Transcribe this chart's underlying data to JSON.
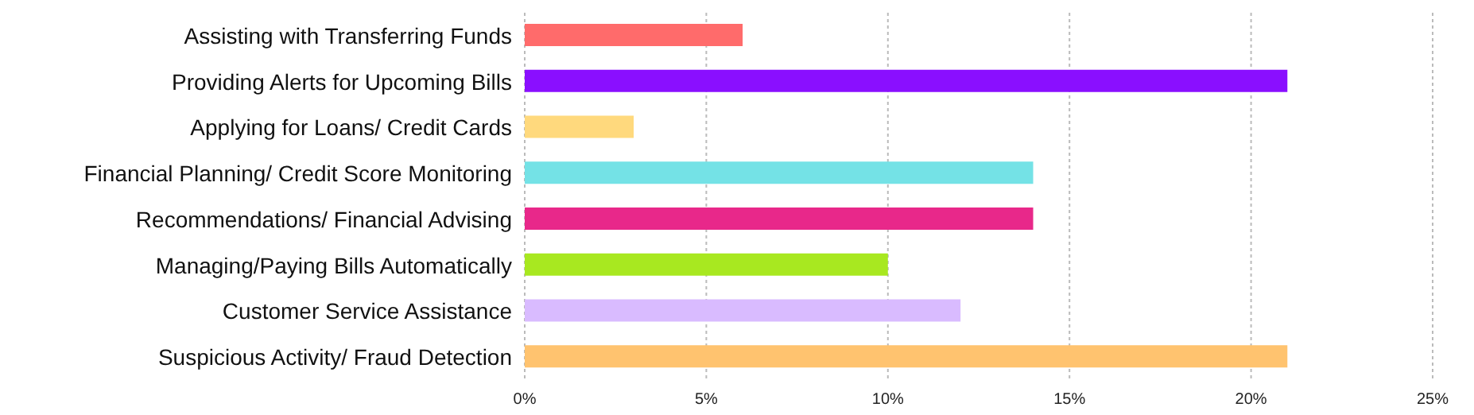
{
  "chart_data": {
    "type": "bar",
    "orientation": "horizontal",
    "categories": [
      "Assisting with Transferring Funds",
      "Providing Alerts for Upcoming Bills",
      "Applying for Loans/ Credit Cards",
      "Financial Planning/ Credit Score Monitoring",
      "Recommendations/ Financial Advising",
      "Managing/Paying Bills Automatically",
      "Customer Service Assistance",
      "Suspicious Activity/ Fraud Detection"
    ],
    "values": [
      6,
      21,
      3,
      14,
      14,
      10,
      12,
      21
    ],
    "colors": [
      "#ff6b6b",
      "#8a0fff",
      "#ffd97d",
      "#74e2e6",
      "#e8288a",
      "#a8e820",
      "#d9bbff",
      "#ffc36f"
    ],
    "xlim": [
      0,
      25
    ],
    "xticks": [
      {
        "value": 0,
        "label": "0%"
      },
      {
        "value": 5,
        "label": "5%"
      },
      {
        "value": 10,
        "label": "10%"
      },
      {
        "value": 15,
        "label": "15%"
      },
      {
        "value": 20,
        "label": "20%"
      },
      {
        "value": 25,
        "label": "25%"
      }
    ],
    "grid": "x"
  }
}
